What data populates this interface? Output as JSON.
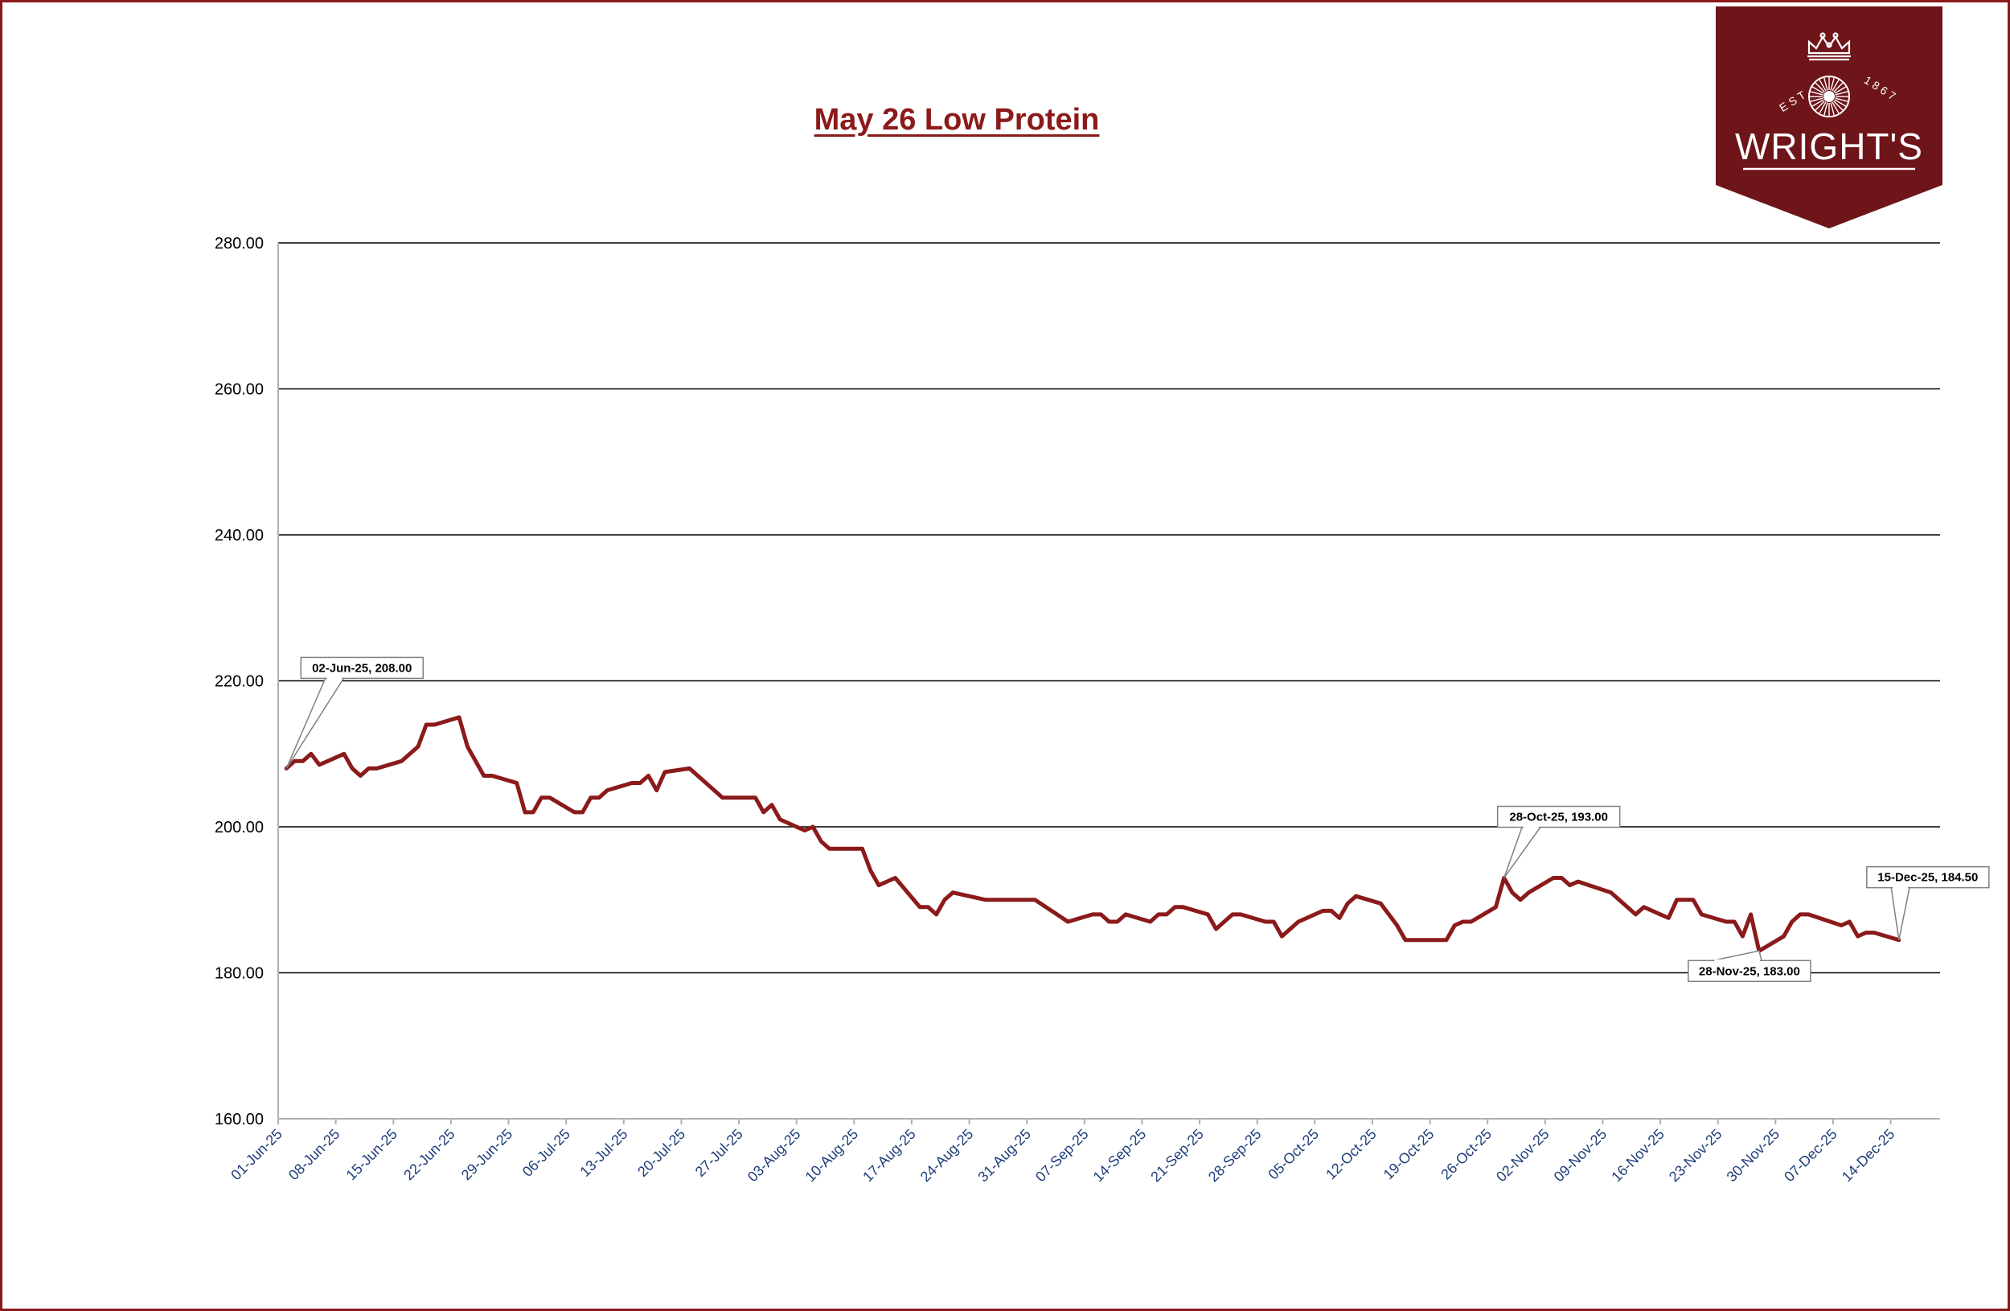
{
  "chart_data": {
    "type": "line",
    "title": "May 26 Low Protein",
    "xlabel": "",
    "ylabel": "",
    "ylim": [
      160,
      280
    ],
    "y_ticks": [
      "160.00",
      "180.00",
      "200.00",
      "220.00",
      "240.00",
      "260.00",
      "280.00"
    ],
    "x_range": [
      "2025-06-01",
      "2025-12-20"
    ],
    "x_ticks": [
      "01-Jun-25",
      "08-Jun-25",
      "15-Jun-25",
      "22-Jun-25",
      "29-Jun-25",
      "06-Jul-25",
      "13-Jul-25",
      "20-Jul-25",
      "27-Jul-25",
      "03-Aug-25",
      "10-Aug-25",
      "17-Aug-25",
      "24-Aug-25",
      "31-Aug-25",
      "07-Sep-25",
      "14-Sep-25",
      "21-Sep-25",
      "28-Sep-25",
      "05-Oct-25",
      "12-Oct-25",
      "19-Oct-25",
      "26-Oct-25",
      "02-Nov-25",
      "09-Nov-25",
      "16-Nov-25",
      "23-Nov-25",
      "30-Nov-25",
      "07-Dec-25",
      "14-Dec-25"
    ],
    "grid": "horizontal",
    "line_color": "#8b1a1a",
    "series": [
      {
        "points": [
          [
            "2025-06-02",
            208.0
          ],
          [
            "2025-06-03",
            209.0
          ],
          [
            "2025-06-04",
            209.0
          ],
          [
            "2025-06-05",
            210.0
          ],
          [
            "2025-06-06",
            208.5
          ],
          [
            "2025-06-09",
            210.0
          ],
          [
            "2025-06-10",
            208.0
          ],
          [
            "2025-06-11",
            207.0
          ],
          [
            "2025-06-12",
            208.0
          ],
          [
            "2025-06-13",
            208.0
          ],
          [
            "2025-06-16",
            209.0
          ],
          [
            "2025-06-18",
            211.0
          ],
          [
            "2025-06-19",
            214.0
          ],
          [
            "2025-06-20",
            214.0
          ],
          [
            "2025-06-23",
            215.0
          ],
          [
            "2025-06-24",
            211.0
          ],
          [
            "2025-06-26",
            207.0
          ],
          [
            "2025-06-27",
            207.0
          ],
          [
            "2025-06-30",
            206.0
          ],
          [
            "2025-07-01",
            202.0
          ],
          [
            "2025-07-02",
            202.0
          ],
          [
            "2025-07-03",
            204.0
          ],
          [
            "2025-07-04",
            204.0
          ],
          [
            "2025-07-07",
            202.0
          ],
          [
            "2025-07-08",
            202.0
          ],
          [
            "2025-07-09",
            204.0
          ],
          [
            "2025-07-10",
            204.0
          ],
          [
            "2025-07-11",
            205.0
          ],
          [
            "2025-07-14",
            206.0
          ],
          [
            "2025-07-15",
            206.0
          ],
          [
            "2025-07-16",
            207.0
          ],
          [
            "2025-07-17",
            205.0
          ],
          [
            "2025-07-18",
            207.5
          ],
          [
            "2025-07-21",
            208.0
          ],
          [
            "2025-07-25",
            204.0
          ],
          [
            "2025-07-28",
            204.0
          ],
          [
            "2025-07-29",
            204.0
          ],
          [
            "2025-07-30",
            202.0
          ],
          [
            "2025-07-31",
            203.0
          ],
          [
            "2025-08-01",
            201.0
          ],
          [
            "2025-08-04",
            199.5
          ],
          [
            "2025-08-05",
            200.0
          ],
          [
            "2025-08-06",
            198.0
          ],
          [
            "2025-08-07",
            197.0
          ],
          [
            "2025-08-08",
            197.0
          ],
          [
            "2025-08-11",
            197.0
          ],
          [
            "2025-08-12",
            194.0
          ],
          [
            "2025-08-13",
            192.0
          ],
          [
            "2025-08-15",
            193.0
          ],
          [
            "2025-08-18",
            189.0
          ],
          [
            "2025-08-19",
            189.0
          ],
          [
            "2025-08-20",
            188.0
          ],
          [
            "2025-08-21",
            190.0
          ],
          [
            "2025-08-22",
            191.0
          ],
          [
            "2025-08-26",
            190.0
          ],
          [
            "2025-09-01",
            190.0
          ],
          [
            "2025-09-05",
            187.0
          ],
          [
            "2025-09-08",
            188.0
          ],
          [
            "2025-09-09",
            188.0
          ],
          [
            "2025-09-10",
            187.0
          ],
          [
            "2025-09-11",
            187.0
          ],
          [
            "2025-09-12",
            188.0
          ],
          [
            "2025-09-15",
            187.0
          ],
          [
            "2025-09-16",
            188.0
          ],
          [
            "2025-09-17",
            188.0
          ],
          [
            "2025-09-18",
            189.0
          ],
          [
            "2025-09-19",
            189.0
          ],
          [
            "2025-09-22",
            188.0
          ],
          [
            "2025-09-23",
            186.0
          ],
          [
            "2025-09-25",
            188.0
          ],
          [
            "2025-09-26",
            188.0
          ],
          [
            "2025-09-29",
            187.0
          ],
          [
            "2025-09-30",
            187.0
          ],
          [
            "2025-10-01",
            185.0
          ],
          [
            "2025-10-03",
            187.0
          ],
          [
            "2025-10-06",
            188.5
          ],
          [
            "2025-10-07",
            188.5
          ],
          [
            "2025-10-08",
            187.5
          ],
          [
            "2025-10-09",
            189.5
          ],
          [
            "2025-10-10",
            190.5
          ],
          [
            "2025-10-13",
            189.5
          ],
          [
            "2025-10-15",
            186.5
          ],
          [
            "2025-10-16",
            184.5
          ],
          [
            "2025-10-21",
            184.5
          ],
          [
            "2025-10-22",
            186.5
          ],
          [
            "2025-10-23",
            187.0
          ],
          [
            "2025-10-24",
            187.0
          ],
          [
            "2025-10-27",
            189.0
          ],
          [
            "2025-10-28",
            193.0
          ],
          [
            "2025-10-29",
            191.0
          ],
          [
            "2025-10-30",
            190.0
          ],
          [
            "2025-10-31",
            191.0
          ],
          [
            "2025-11-03",
            193.0
          ],
          [
            "2025-11-04",
            193.0
          ],
          [
            "2025-11-05",
            192.0
          ],
          [
            "2025-11-06",
            192.5
          ],
          [
            "2025-11-10",
            191.0
          ],
          [
            "2025-11-13",
            188.0
          ],
          [
            "2025-11-14",
            189.0
          ],
          [
            "2025-11-17",
            187.5
          ],
          [
            "2025-11-18",
            190.0
          ],
          [
            "2025-11-20",
            190.0
          ],
          [
            "2025-11-21",
            188.0
          ],
          [
            "2025-11-24",
            187.0
          ],
          [
            "2025-11-25",
            187.0
          ],
          [
            "2025-11-26",
            185.0
          ],
          [
            "2025-11-27",
            188.0
          ],
          [
            "2025-11-28",
            183.0
          ],
          [
            "2025-12-01",
            185.0
          ],
          [
            "2025-12-02",
            187.0
          ],
          [
            "2025-12-03",
            188.0
          ],
          [
            "2025-12-04",
            188.0
          ],
          [
            "2025-12-08",
            186.5
          ],
          [
            "2025-12-09",
            187.0
          ],
          [
            "2025-12-10",
            185.0
          ],
          [
            "2025-12-11",
            185.5
          ],
          [
            "2025-12-12",
            185.5
          ],
          [
            "2025-12-15",
            184.5
          ]
        ]
      }
    ],
    "annotations": [
      {
        "x": "2025-06-02",
        "y": 208.0,
        "text": "02-Jun-25, 208.00"
      },
      {
        "x": "2025-10-28",
        "y": 193.0,
        "text": "28-Oct-25, 193.00"
      },
      {
        "x": "2025-11-28",
        "y": 183.0,
        "text": "28-Nov-25, 183.00"
      },
      {
        "x": "2025-12-15",
        "y": 184.5,
        "text": "15-Dec-25, 184.50"
      }
    ]
  },
  "logo": {
    "name": "WRIGHT'S",
    "est": "EST",
    "year": "1867",
    "background": "#6e1519",
    "foreground": "#ffffff"
  }
}
